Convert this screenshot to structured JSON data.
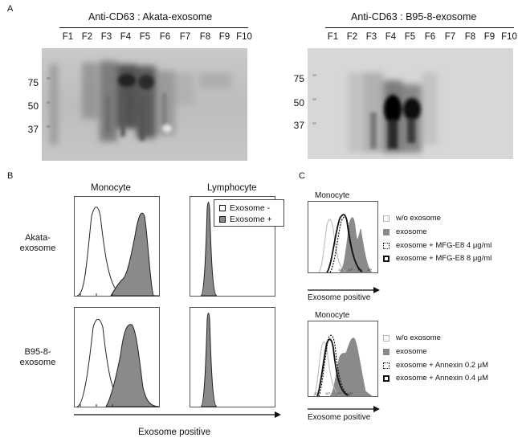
{
  "panels": {
    "A": {
      "letter": "A",
      "blots": [
        {
          "title": "Anti-CD63 : Akata-exosome",
          "lanes": [
            "F1",
            "F2",
            "F3",
            "F4",
            "F5",
            "F6",
            "F7",
            "F8",
            "F9",
            "F10"
          ],
          "markers": [
            "75",
            "50",
            "37"
          ]
        },
        {
          "title": "Anti-CD63 : B95-8-exosome",
          "lanes": [
            "F1",
            "F2",
            "F3",
            "F4",
            "F5",
            "F6",
            "F7",
            "F8",
            "F9",
            "F10"
          ],
          "markers": [
            "75",
            "50",
            "37"
          ]
        }
      ]
    },
    "B": {
      "letter": "B",
      "columns": [
        "Monocyte",
        "Lymphocyte"
      ],
      "rows": [
        {
          "line1": "Akata-",
          "line2": "exosome"
        },
        {
          "line1": "B95-8-",
          "line2": "exosome"
        }
      ],
      "legend": [
        "Exosome -",
        "Exosome +"
      ],
      "xlabel": "Exosome positive"
    },
    "C": {
      "letter": "C",
      "plots": [
        {
          "title": "Monocyte",
          "legend": [
            "w/o exosome",
            "exosome",
            "exosome + MFG-E8 4 μg/ml",
            "exosome + MFG-E8 8 μg/ml"
          ],
          "xlabel": "Exosome positive"
        },
        {
          "title": "Monocyte",
          "legend": [
            "w/o exosome",
            "exosome",
            "exosome + Annexin 0.2 μM",
            "exosome + Annexin 0.4 μM"
          ],
          "xlabel": "Exosome positive"
        }
      ]
    }
  },
  "colors": {
    "filled": "#8a8a8a",
    "open_gray": "#b5b5b5",
    "line": "#111111"
  }
}
